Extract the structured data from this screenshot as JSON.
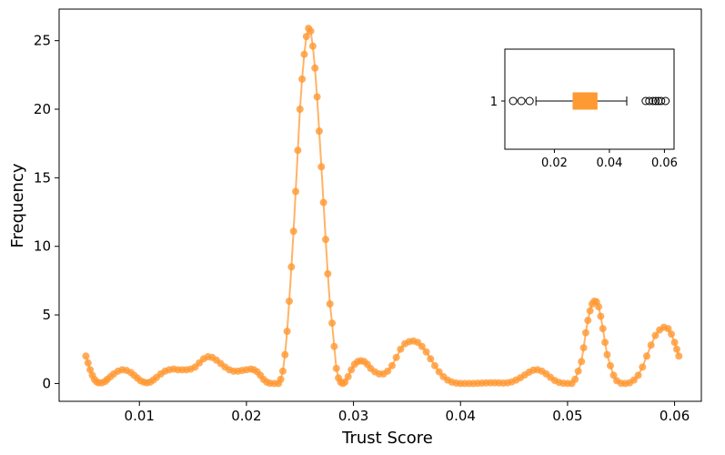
{
  "chart_data": [
    {
      "type": "line",
      "title": "",
      "xlabel": "Trust Score",
      "ylabel": "Frequency",
      "xlim": [
        0.0025,
        0.0625
      ],
      "ylim": [
        -1.3,
        27.3
      ],
      "x_ticks": [
        "0.01",
        "0.02",
        "0.03",
        "0.04",
        "0.05",
        "0.06"
      ],
      "y_ticks": [
        "0",
        "5",
        "10",
        "15",
        "20",
        "25"
      ],
      "grid": false,
      "legend": "none",
      "series": [
        {
          "color": "#ff9933",
          "marker": "circle",
          "points": [
            [
              0.005,
              2.0
            ],
            [
              0.0052,
              1.5
            ],
            [
              0.0054,
              1.0
            ],
            [
              0.0056,
              0.6
            ],
            [
              0.0058,
              0.3
            ],
            [
              0.006,
              0.12
            ],
            [
              0.0062,
              0.05
            ],
            [
              0.0065,
              0.05
            ],
            [
              0.0068,
              0.15
            ],
            [
              0.007,
              0.3
            ],
            [
              0.0073,
              0.5
            ],
            [
              0.0076,
              0.7
            ],
            [
              0.008,
              0.9
            ],
            [
              0.0084,
              1.0
            ],
            [
              0.0088,
              0.95
            ],
            [
              0.0092,
              0.8
            ],
            [
              0.0095,
              0.6
            ],
            [
              0.0098,
              0.4
            ],
            [
              0.0101,
              0.2
            ],
            [
              0.0104,
              0.1
            ],
            [
              0.0107,
              0.05
            ],
            [
              0.011,
              0.1
            ],
            [
              0.0113,
              0.25
            ],
            [
              0.0116,
              0.45
            ],
            [
              0.012,
              0.7
            ],
            [
              0.0124,
              0.9
            ],
            [
              0.0128,
              1.0
            ],
            [
              0.0132,
              1.05
            ],
            [
              0.0136,
              1.0
            ],
            [
              0.014,
              1.0
            ],
            [
              0.0144,
              1.0
            ],
            [
              0.0148,
              1.05
            ],
            [
              0.0152,
              1.2
            ],
            [
              0.0156,
              1.5
            ],
            [
              0.016,
              1.8
            ],
            [
              0.0164,
              1.95
            ],
            [
              0.0168,
              1.9
            ],
            [
              0.0172,
              1.7
            ],
            [
              0.0176,
              1.45
            ],
            [
              0.018,
              1.2
            ],
            [
              0.0184,
              1.0
            ],
            [
              0.0188,
              0.9
            ],
            [
              0.0192,
              0.9
            ],
            [
              0.0196,
              0.95
            ],
            [
              0.02,
              1.0
            ],
            [
              0.0204,
              1.05
            ],
            [
              0.0207,
              1.0
            ],
            [
              0.021,
              0.85
            ],
            [
              0.0213,
              0.6
            ],
            [
              0.0216,
              0.3
            ],
            [
              0.0219,
              0.1
            ],
            [
              0.0222,
              0.02
            ],
            [
              0.0226,
              0.0
            ],
            [
              0.023,
              0.0
            ],
            [
              0.0232,
              0.3
            ],
            [
              0.0234,
              0.9
            ],
            [
              0.0236,
              2.1
            ],
            [
              0.0238,
              3.8
            ],
            [
              0.024,
              6.0
            ],
            [
              0.0242,
              8.5
            ],
            [
              0.0244,
              11.1
            ],
            [
              0.0246,
              14.0
            ],
            [
              0.0248,
              17.0
            ],
            [
              0.025,
              20.0
            ],
            [
              0.0252,
              22.2
            ],
            [
              0.0254,
              24.0
            ],
            [
              0.0256,
              25.3
            ],
            [
              0.0258,
              25.9
            ],
            [
              0.026,
              25.7
            ],
            [
              0.0262,
              24.6
            ],
            [
              0.0264,
              23.0
            ],
            [
              0.0266,
              20.9
            ],
            [
              0.0268,
              18.4
            ],
            [
              0.027,
              15.8
            ],
            [
              0.0272,
              13.2
            ],
            [
              0.0274,
              10.5
            ],
            [
              0.0276,
              8.0
            ],
            [
              0.0278,
              5.8
            ],
            [
              0.028,
              4.4
            ],
            [
              0.0282,
              2.7
            ],
            [
              0.0284,
              1.1
            ],
            [
              0.0286,
              0.4
            ],
            [
              0.0288,
              0.1
            ],
            [
              0.029,
              0.0
            ],
            [
              0.0292,
              0.1
            ],
            [
              0.0295,
              0.5
            ],
            [
              0.0298,
              1.0
            ],
            [
              0.0301,
              1.4
            ],
            [
              0.0304,
              1.6
            ],
            [
              0.0307,
              1.65
            ],
            [
              0.031,
              1.6
            ],
            [
              0.0313,
              1.4
            ],
            [
              0.0316,
              1.1
            ],
            [
              0.032,
              0.85
            ],
            [
              0.0324,
              0.7
            ],
            [
              0.0328,
              0.7
            ],
            [
              0.0332,
              0.9
            ],
            [
              0.0336,
              1.3
            ],
            [
              0.034,
              1.9
            ],
            [
              0.0344,
              2.5
            ],
            [
              0.0348,
              2.9
            ],
            [
              0.0352,
              3.05
            ],
            [
              0.0356,
              3.1
            ],
            [
              0.036,
              3.0
            ],
            [
              0.0364,
              2.7
            ],
            [
              0.0368,
              2.3
            ],
            [
              0.0372,
              1.8
            ],
            [
              0.0376,
              1.3
            ],
            [
              0.038,
              0.85
            ],
            [
              0.0384,
              0.5
            ],
            [
              0.0388,
              0.25
            ],
            [
              0.0392,
              0.1
            ],
            [
              0.0396,
              0.03
            ],
            [
              0.04,
              0.0
            ],
            [
              0.0404,
              0.0
            ],
            [
              0.0408,
              0.0
            ],
            [
              0.0412,
              0.0
            ],
            [
              0.0416,
              0.02
            ],
            [
              0.042,
              0.03
            ],
            [
              0.0424,
              0.04
            ],
            [
              0.0428,
              0.05
            ],
            [
              0.0432,
              0.05
            ],
            [
              0.0436,
              0.04
            ],
            [
              0.044,
              0.03
            ],
            [
              0.0444,
              0.05
            ],
            [
              0.0448,
              0.12
            ],
            [
              0.0452,
              0.25
            ],
            [
              0.0456,
              0.42
            ],
            [
              0.046,
              0.62
            ],
            [
              0.0464,
              0.82
            ],
            [
              0.0468,
              0.97
            ],
            [
              0.0472,
              1.0
            ],
            [
              0.0476,
              0.9
            ],
            [
              0.048,
              0.7
            ],
            [
              0.0484,
              0.45
            ],
            [
              0.0488,
              0.22
            ],
            [
              0.0492,
              0.08
            ],
            [
              0.0496,
              0.02
            ],
            [
              0.05,
              0.0
            ],
            [
              0.0504,
              0.0
            ],
            [
              0.0507,
              0.3
            ],
            [
              0.051,
              0.9
            ],
            [
              0.0513,
              1.6
            ],
            [
              0.0515,
              2.6
            ],
            [
              0.0517,
              3.7
            ],
            [
              0.0519,
              4.6
            ],
            [
              0.0521,
              5.3
            ],
            [
              0.0523,
              5.8
            ],
            [
              0.0525,
              6.0
            ],
            [
              0.0527,
              5.95
            ],
            [
              0.0529,
              5.6
            ],
            [
              0.0531,
              4.9
            ],
            [
              0.0533,
              4.0
            ],
            [
              0.0535,
              3.0
            ],
            [
              0.0537,
              2.1
            ],
            [
              0.054,
              1.3
            ],
            [
              0.0543,
              0.6
            ],
            [
              0.0546,
              0.2
            ],
            [
              0.055,
              0.02
            ],
            [
              0.0554,
              0.0
            ],
            [
              0.0558,
              0.05
            ],
            [
              0.0562,
              0.25
            ],
            [
              0.0566,
              0.6
            ],
            [
              0.057,
              1.2
            ],
            [
              0.0574,
              2.0
            ],
            [
              0.0578,
              2.8
            ],
            [
              0.0582,
              3.5
            ],
            [
              0.0586,
              3.9
            ],
            [
              0.059,
              4.1
            ],
            [
              0.0594,
              4.0
            ],
            [
              0.0597,
              3.6
            ],
            [
              0.06,
              3.0
            ],
            [
              0.0602,
              2.5
            ],
            [
              0.0604,
              2.0
            ]
          ]
        }
      ]
    },
    {
      "type": "boxplot",
      "title": "",
      "inset": "top-right",
      "orientation": "horizontal",
      "category_labels": [
        "1"
      ],
      "x_ticks": [
        "0.02",
        "0.04",
        "0.06"
      ],
      "xlim": [
        0.002,
        0.0635
      ],
      "box": {
        "color": "#ff9933",
        "whisker_low": 0.0133,
        "q1": 0.0268,
        "median": 0.0304,
        "q3": 0.0355,
        "whisker_high": 0.0463,
        "outliers": [
          0.005,
          0.008,
          0.011,
          0.0532,
          0.0545,
          0.0558,
          0.0568,
          0.0578,
          0.0588,
          0.0604
        ]
      }
    }
  ]
}
